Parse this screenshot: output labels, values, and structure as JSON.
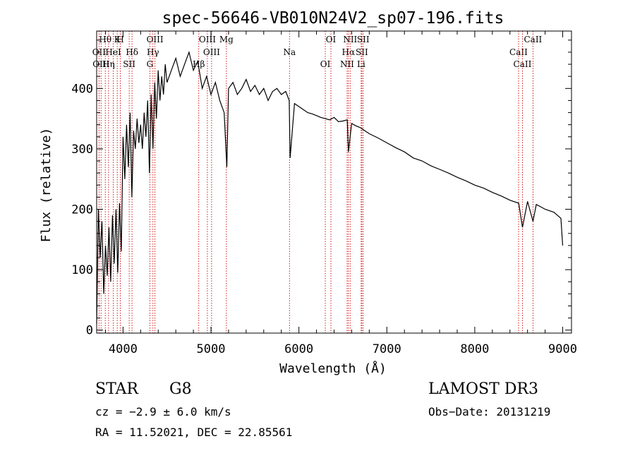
{
  "chart_data": {
    "type": "line",
    "title": "spec-56646-VB010N24V2_sp07-196.fits",
    "xlabel": "Wavelength (Å)",
    "ylabel": "Flux (relative)",
    "xlim": [
      3700,
      9100
    ],
    "ylim": [
      -5,
      495
    ],
    "xticks": [
      4000,
      5000,
      6000,
      7000,
      8000,
      9000
    ],
    "yticks": [
      0,
      100,
      200,
      300,
      400
    ],
    "series": [
      {
        "name": "flux",
        "x": [
          3700,
          3720,
          3740,
          3760,
          3780,
          3800,
          3820,
          3840,
          3860,
          3880,
          3900,
          3920,
          3940,
          3960,
          3980,
          4000,
          4020,
          4040,
          4060,
          4080,
          4100,
          4120,
          4140,
          4160,
          4180,
          4200,
          4220,
          4240,
          4260,
          4280,
          4300,
          4320,
          4340,
          4360,
          4380,
          4400,
          4420,
          4440,
          4460,
          4480,
          4500,
          4550,
          4600,
          4650,
          4700,
          4750,
          4800,
          4850,
          4900,
          4950,
          5000,
          5050,
          5100,
          5150,
          5180,
          5200,
          5250,
          5300,
          5350,
          5400,
          5450,
          5500,
          5550,
          5600,
          5650,
          5700,
          5750,
          5800,
          5850,
          5890,
          5900,
          5950,
          6000,
          6050,
          6100,
          6150,
          6200,
          6250,
          6300,
          6350,
          6400,
          6450,
          6500,
          6550,
          6563,
          6600,
          6650,
          6700,
          6750,
          6800,
          6900,
          7000,
          7100,
          7200,
          7300,
          7400,
          7500,
          7600,
          7700,
          7800,
          7900,
          8000,
          8100,
          8200,
          8300,
          8400,
          8500,
          8542,
          8600,
          8662,
          8700,
          8800,
          8900,
          8980,
          9000
        ],
        "values": [
          10,
          200,
          120,
          180,
          60,
          140,
          90,
          170,
          80,
          190,
          110,
          200,
          95,
          210,
          130,
          320,
          250,
          340,
          270,
          360,
          220,
          330,
          300,
          350,
          310,
          340,
          300,
          360,
          320,
          380,
          260,
          390,
          300,
          410,
          350,
          430,
          380,
          420,
          390,
          440,
          410,
          430,
          450,
          420,
          440,
          460,
          430,
          445,
          400,
          420,
          390,
          410,
          380,
          360,
          270,
          400,
          410,
          390,
          400,
          415,
          395,
          405,
          390,
          400,
          380,
          395,
          400,
          390,
          395,
          380,
          285,
          375,
          370,
          365,
          360,
          358,
          355,
          352,
          350,
          348,
          352,
          345,
          346,
          348,
          295,
          342,
          338,
          335,
          330,
          325,
          318,
          310,
          302,
          295,
          285,
          280,
          272,
          266,
          260,
          253,
          247,
          240,
          235,
          228,
          222,
          215,
          210,
          170,
          213,
          180,
          208,
          200,
          195,
          185,
          140
        ]
      }
    ],
    "emission_lines": [
      {
        "label": "Hθ",
        "wl": 3798
      },
      {
        "label": "OII",
        "wl": 3727
      },
      {
        "label": "OIII",
        "wl": 3750
      },
      {
        "label": "K",
        "wl": 3934
      },
      {
        "label": "HeI",
        "wl": 3889
      },
      {
        "label": "Hη",
        "wl": 3835
      },
      {
        "label": "H",
        "wl": 3969
      },
      {
        "label": "Hδ",
        "wl": 4102
      },
      {
        "label": "SII",
        "wl": 4070
      },
      {
        "label": "OIII",
        "wl": 4363
      },
      {
        "label": "Hγ",
        "wl": 4340
      },
      {
        "label": "G",
        "wl": 4305
      },
      {
        "label": "OIII",
        "wl": 4959
      },
      {
        "label": "OIII",
        "wl": 5007
      },
      {
        "label": "Hβ",
        "wl": 4861
      },
      {
        "label": "Mg",
        "wl": 5175
      },
      {
        "label": "Na",
        "wl": 5893
      },
      {
        "label": "OI",
        "wl": 6300
      },
      {
        "label": "OI",
        "wl": 6364
      },
      {
        "label": "Hα",
        "wl": 6563
      },
      {
        "label": "NII",
        "wl": 6548
      },
      {
        "label": "NII",
        "wl": 6583
      },
      {
        "label": "SII",
        "wl": 6716
      },
      {
        "label": "Li",
        "wl": 6708
      },
      {
        "label": "SII",
        "wl": 6731
      },
      {
        "label": "CaII",
        "wl": 8498
      },
      {
        "label": "CaII",
        "wl": 8542
      },
      {
        "label": "CaII",
        "wl": 8662
      }
    ]
  },
  "info": {
    "object_class": "STAR",
    "subclass": "G8",
    "survey": "LAMOST DR3",
    "cz": "cz = −2.9 ± 6.0 km/s",
    "obs_date": "Obs−Date: 20131219",
    "coords": "RA =  11.52021, DEC =  22.85561"
  }
}
